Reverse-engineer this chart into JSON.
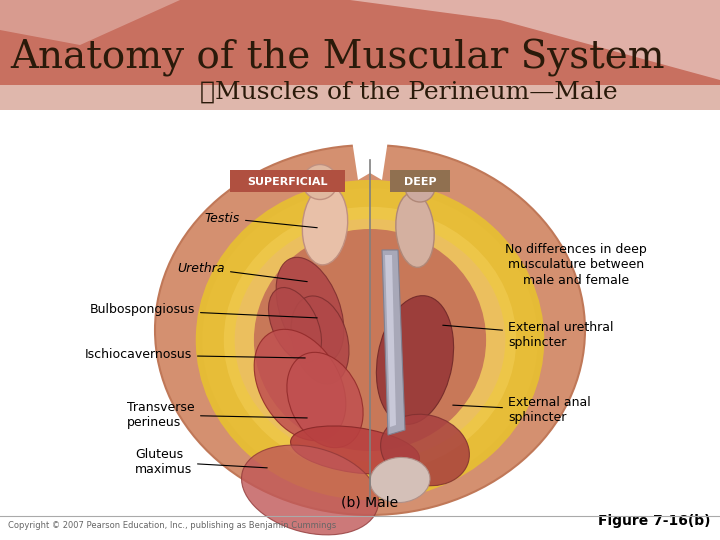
{
  "title": "Anatomy of the Muscular System",
  "subtitle": "❧Muscles of the Perineum—Male",
  "figure_label": "Figure 7-16(b)",
  "caption": "(b) Male",
  "copyright": "Copyright © 2007 Pearson Education, Inc., publishing as Benjamin Cummings",
  "title_color": "#2a1a0a",
  "subtitle_color": "#2a1a0a",
  "title_fontsize": 28,
  "subtitle_fontsize": 18,
  "superficial_label": "SUPERFICIAL",
  "deep_label": "DEEP",
  "superficial_bg": "#b05040",
  "deep_bg": "#907050",
  "header_salmon": "#c8706a",
  "header_light": "#e8c8b8",
  "outer_oval_color": "#d4907a",
  "yellow_color": "#e8c840",
  "muscle_red": "#a04040",
  "muscle_dark": "#803030",
  "skin_inner": "#e0a880",
  "skin_outer": "#d08868",
  "urethra_color": "#909098",
  "figure_label_fontsize": 10,
  "caption_fontsize": 10,
  "copyright_fontsize": 6,
  "label_fontsize": 9,
  "annot_line_color": "#000000",
  "annot_line_lw": 0.8
}
